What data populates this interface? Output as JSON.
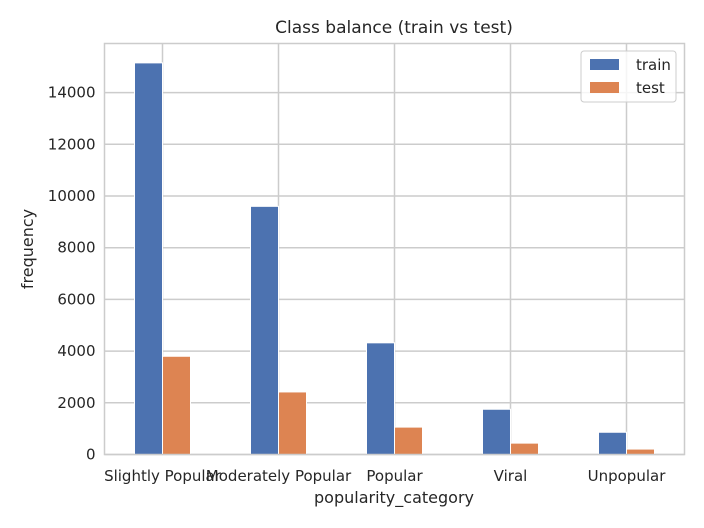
{
  "chart_data": {
    "type": "bar",
    "title": "Class balance (train vs test)",
    "xlabel": "popularity_category",
    "ylabel": "frequency",
    "categories": [
      "Slightly Popular",
      "Moderately Popular",
      "Popular",
      "Viral",
      "Unpopular"
    ],
    "series": [
      {
        "name": "train",
        "color": "#4c72b0",
        "values": [
          15150,
          9600,
          4320,
          1750,
          860
        ]
      },
      {
        "name": "test",
        "color": "#dd8452",
        "values": [
          3800,
          2420,
          1060,
          440,
          210
        ]
      }
    ],
    "ylim": [
      0,
      15900
    ],
    "yticks": [
      0,
      2000,
      4000,
      6000,
      8000,
      10000,
      12000,
      14000
    ],
    "grid": true,
    "legend_position": "top-right"
  }
}
